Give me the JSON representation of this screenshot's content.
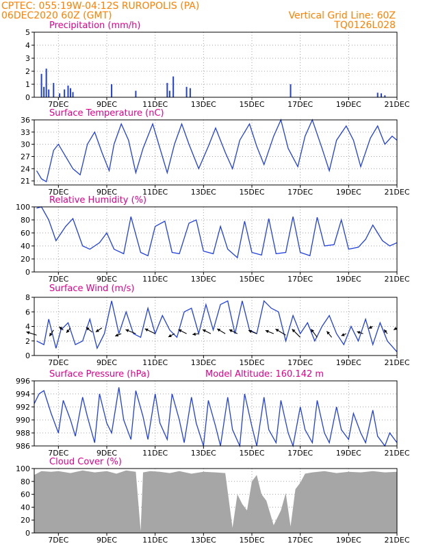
{
  "header": {
    "line1_left": "CPTEC:   055:19W-04:12S   RUROPOLIS (PA)",
    "line2_left": "06DEC2020 60Z (GMT)",
    "line1_right": "Vertical Grid Line: 60Z",
    "line2_right": "TQ0126L028",
    "color": "#ff8000"
  },
  "colors": {
    "title": "#e0008a",
    "series": "#1f3fe0",
    "cloud": "#a6a6a6",
    "grid": "#a0a0a0"
  },
  "x_ticks": [
    "7DEC",
    "9DEC",
    "11DEC",
    "13DEC",
    "15DEC",
    "17DEC",
    "19DEC",
    "21DEC"
  ],
  "chart_data": [
    {
      "type": "bar",
      "title": "Precipitation (mm/h)",
      "x_unit": "days since 06DEC2020 00Z",
      "x_range": [
        0,
        15
      ],
      "ylim": [
        0,
        5
      ],
      "y_ticks": [
        0,
        1,
        2,
        3,
        4,
        5
      ],
      "grid": true,
      "bars": [
        [
          0.3,
          1.8
        ],
        [
          0.4,
          0.8
        ],
        [
          0.5,
          2.2
        ],
        [
          0.6,
          0.6
        ],
        [
          0.8,
          1.1
        ],
        [
          1.05,
          0.3
        ],
        [
          1.25,
          0.6
        ],
        [
          1.4,
          0.9
        ],
        [
          1.5,
          0.7
        ],
        [
          1.6,
          0.4
        ],
        [
          3.2,
          1.0
        ],
        [
          4.2,
          0.5
        ],
        [
          5.5,
          1.1
        ],
        [
          5.6,
          0.5
        ],
        [
          5.75,
          1.6
        ],
        [
          6.3,
          0.8
        ],
        [
          6.45,
          0.7
        ],
        [
          10.6,
          1.0
        ],
        [
          14.2,
          0.35
        ],
        [
          14.35,
          0.3
        ],
        [
          14.5,
          0.15
        ]
      ]
    },
    {
      "type": "line",
      "title": "Surface Temperature (nC)",
      "x_range": [
        0,
        15
      ],
      "ylim": [
        20,
        36
      ],
      "y_ticks": [
        21,
        24,
        27,
        30,
        33,
        36
      ],
      "grid": true,
      "x": [
        0.1,
        0.3,
        0.5,
        0.8,
        1.0,
        1.3,
        1.6,
        1.9,
        2.2,
        2.5,
        2.8,
        3.1,
        3.3,
        3.6,
        3.9,
        4.2,
        4.5,
        4.9,
        5.2,
        5.5,
        5.8,
        6.1,
        6.4,
        6.8,
        7.2,
        7.5,
        7.9,
        8.2,
        8.5,
        8.9,
        9.2,
        9.5,
        9.9,
        10.2,
        10.5,
        10.9,
        11.2,
        11.5,
        11.9,
        12.2,
        12.5,
        12.9,
        13.2,
        13.5,
        13.9,
        14.2,
        14.5,
        14.8,
        15.0
      ],
      "values": [
        23.5,
        21.5,
        20.8,
        28.5,
        30.0,
        27.0,
        24.0,
        22.5,
        30.0,
        33.0,
        28.0,
        23.5,
        30.0,
        35.0,
        31.0,
        23.0,
        29.0,
        35.0,
        29.0,
        23.0,
        30.0,
        35.0,
        30.0,
        24.0,
        29.5,
        34.0,
        28.0,
        24.0,
        31.0,
        35.0,
        29.5,
        25.0,
        32.0,
        36.0,
        29.0,
        24.5,
        32.0,
        36.0,
        29.0,
        23.5,
        31.0,
        34.5,
        31.0,
        24.5,
        31.5,
        34.5,
        30.0,
        32.0,
        31.0
      ]
    },
    {
      "type": "line",
      "title": "Relative Humidity (%)",
      "x_range": [
        0,
        15
      ],
      "ylim": [
        0,
        100
      ],
      "y_ticks": [
        0,
        20,
        40,
        60,
        80,
        100
      ],
      "grid": true,
      "x": [
        0.1,
        0.3,
        0.6,
        0.9,
        1.3,
        1.6,
        2.0,
        2.3,
        2.7,
        3.0,
        3.3,
        3.7,
        4.0,
        4.4,
        4.7,
        5.0,
        5.4,
        5.7,
        6.0,
        6.4,
        6.7,
        7.0,
        7.4,
        7.7,
        8.0,
        8.4,
        8.7,
        9.0,
        9.4,
        9.7,
        10.0,
        10.4,
        10.7,
        11.0,
        11.4,
        11.7,
        12.0,
        12.4,
        12.7,
        13.0,
        13.4,
        13.7,
        14.0,
        14.4,
        14.7,
        15.0
      ],
      "values": [
        98,
        100,
        80,
        48,
        70,
        82,
        40,
        35,
        45,
        60,
        35,
        28,
        85,
        30,
        25,
        70,
        78,
        30,
        28,
        75,
        80,
        32,
        28,
        70,
        35,
        22,
        78,
        30,
        26,
        82,
        28,
        30,
        85,
        30,
        25,
        84,
        40,
        42,
        80,
        35,
        38,
        50,
        72,
        48,
        40,
        45
      ]
    },
    {
      "type": "line",
      "title": "Surface Wind (m/s)",
      "x_range": [
        0,
        15
      ],
      "ylim": [
        0,
        8
      ],
      "y_ticks": [
        0,
        2,
        4,
        6,
        8
      ],
      "grid": true,
      "x": [
        0.1,
        0.4,
        0.6,
        0.9,
        1.1,
        1.4,
        1.7,
        2.0,
        2.3,
        2.6,
        2.9,
        3.2,
        3.5,
        3.8,
        4.1,
        4.4,
        4.7,
        5.0,
        5.3,
        5.6,
        5.9,
        6.2,
        6.5,
        6.8,
        7.1,
        7.4,
        7.7,
        8.0,
        8.3,
        8.6,
        8.9,
        9.2,
        9.5,
        9.8,
        10.1,
        10.4,
        10.7,
        11.0,
        11.3,
        11.6,
        11.9,
        12.2,
        12.5,
        12.8,
        13.1,
        13.4,
        13.7,
        14.0,
        14.3,
        14.6,
        15.0
      ],
      "values": [
        2.0,
        1.5,
        5.0,
        1.0,
        3.5,
        4.5,
        1.5,
        2.0,
        5.0,
        1.0,
        3.0,
        7.5,
        3.0,
        6.0,
        3.0,
        2.5,
        6.5,
        3.0,
        5.5,
        3.5,
        2.5,
        6.0,
        6.5,
        3.0,
        7.0,
        3.5,
        7.0,
        7.5,
        3.0,
        7.5,
        3.5,
        3.0,
        7.5,
        6.5,
        6.0,
        2.0,
        5.5,
        3.0,
        4.5,
        2.0,
        4.0,
        5.5,
        3.0,
        1.5,
        4.0,
        2.0,
        5.0,
        1.5,
        4.5,
        2.0,
        0.5
      ],
      "wind_vectors": [
        [
          0.1,
          2.8,
          -25,
          -8
        ],
        [
          0.8,
          3.5,
          -10,
          15
        ],
        [
          1.2,
          3.5,
          -10,
          -8
        ],
        [
          1.5,
          3.8,
          -10,
          12
        ],
        [
          2.4,
          3.2,
          -15,
          -12
        ],
        [
          2.8,
          3.8,
          -15,
          10
        ],
        [
          3.6,
          3.0,
          -15,
          6
        ],
        [
          4.2,
          3.0,
          -25,
          -10
        ],
        [
          5.0,
          3.0,
          -25,
          -12
        ],
        [
          5.8,
          3.0,
          -15,
          8
        ],
        [
          6.3,
          3.0,
          -20,
          -10
        ],
        [
          6.8,
          3.0,
          -15,
          2
        ],
        [
          7.3,
          3.0,
          -20,
          -10
        ],
        [
          7.9,
          3.0,
          -20,
          -12
        ],
        [
          8.4,
          3.0,
          -20,
          -10
        ],
        [
          9.2,
          3.0,
          -20,
          -8
        ],
        [
          9.9,
          3.0,
          -20,
          -8
        ],
        [
          10.4,
          2.8,
          -25,
          -15
        ],
        [
          11.0,
          2.5,
          -20,
          -20
        ],
        [
          11.7,
          2.5,
          -15,
          -20
        ],
        [
          12.3,
          2.5,
          -12,
          -15
        ],
        [
          12.9,
          3.0,
          -12,
          5
        ],
        [
          13.6,
          3.0,
          -15,
          -5
        ],
        [
          14.0,
          4.0,
          -10,
          5
        ],
        [
          14.6,
          3.0,
          -8,
          -10
        ],
        [
          15.0,
          3.8,
          -8,
          5
        ]
      ]
    },
    {
      "type": "line",
      "title": "Surface Pressure (hPa)",
      "annotation": "Model Altitude: 160.142 m",
      "x_range": [
        0,
        15
      ],
      "ylim": [
        986,
        996
      ],
      "y_ticks": [
        986,
        988,
        990,
        992,
        994,
        996
      ],
      "grid": true,
      "x": [
        0.0,
        0.2,
        0.4,
        0.7,
        1.0,
        1.2,
        1.5,
        1.7,
        2.0,
        2.2,
        2.5,
        2.7,
        3.0,
        3.2,
        3.5,
        3.7,
        4.0,
        4.2,
        4.5,
        4.7,
        5.0,
        5.2,
        5.5,
        5.7,
        6.0,
        6.2,
        6.5,
        6.7,
        7.0,
        7.2,
        7.5,
        7.7,
        8.0,
        8.2,
        8.5,
        8.7,
        9.0,
        9.2,
        9.5,
        9.7,
        10.0,
        10.2,
        10.5,
        10.7,
        11.0,
        11.2,
        11.5,
        11.7,
        12.0,
        12.2,
        12.5,
        12.7,
        13.0,
        13.2,
        13.5,
        13.7,
        14.0,
        14.2,
        14.5,
        14.7,
        15.0
      ],
      "values": [
        992.5,
        994.0,
        994.5,
        991.0,
        988.0,
        993.0,
        990.0,
        987.5,
        993.5,
        990.5,
        986.5,
        994.0,
        989.5,
        988.0,
        995.0,
        990.0,
        987.0,
        994.5,
        990.5,
        987.0,
        994.0,
        989.5,
        987.0,
        994.0,
        990.0,
        986.5,
        993.5,
        989.5,
        986.0,
        993.0,
        989.0,
        986.0,
        993.5,
        988.5,
        986.0,
        994.0,
        989.0,
        986.0,
        993.5,
        988.5,
        986.5,
        993.0,
        988.0,
        986.0,
        992.0,
        988.5,
        986.5,
        993.0,
        988.0,
        986.5,
        992.0,
        988.5,
        987.0,
        991.0,
        988.0,
        986.5,
        991.5,
        987.5,
        986.0,
        988.0,
        986.5
      ]
    },
    {
      "type": "area",
      "title": "Cloud Cover (%)",
      "x_range": [
        0,
        15
      ],
      "ylim": [
        0,
        100
      ],
      "y_ticks": [
        0,
        20,
        40,
        60,
        80,
        100
      ],
      "grid": true,
      "x": [
        0.0,
        0.3,
        0.7,
        1.0,
        1.5,
        2.0,
        2.5,
        3.0,
        3.4,
        3.8,
        4.2,
        4.4,
        4.5,
        4.8,
        5.2,
        5.6,
        6.0,
        6.5,
        7.0,
        7.5,
        7.9,
        8.2,
        8.4,
        8.6,
        8.8,
        9.0,
        9.2,
        9.4,
        9.6,
        9.9,
        10.2,
        10.4,
        10.6,
        10.8,
        11.0,
        11.2,
        11.5,
        12.0,
        12.5,
        13.0,
        13.5,
        14.0,
        14.5,
        15.0
      ],
      "values": [
        90,
        96,
        95,
        96,
        93,
        97,
        94,
        96,
        92,
        97,
        95,
        3,
        94,
        96,
        95,
        93,
        96,
        92,
        95,
        94,
        93,
        8,
        60,
        45,
        35,
        80,
        90,
        60,
        50,
        12,
        35,
        62,
        10,
        68,
        78,
        92,
        94,
        96,
        93,
        95,
        94,
        96,
        94,
        95
      ]
    }
  ]
}
